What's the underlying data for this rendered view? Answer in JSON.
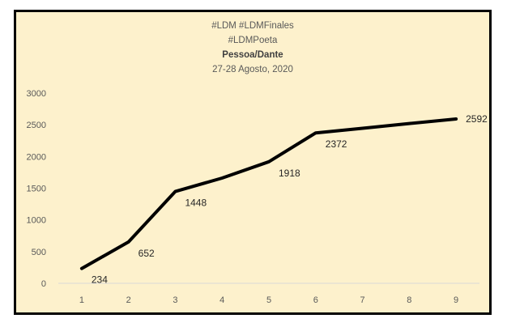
{
  "chart_data": {
    "type": "line",
    "title_lines": [
      "#LDM #LDMFinales",
      "#LDMPoeta"
    ],
    "title_bold": "Pessoa/Dante",
    "subtitle": "27-28 Agosto, 2020",
    "categories": [
      "1",
      "2",
      "3",
      "4",
      "5",
      "6",
      "7",
      "8",
      "9"
    ],
    "series": [
      {
        "values": [
          234,
          652,
          1448,
          1660,
          1918,
          2372,
          2445,
          2520,
          2592
        ],
        "labels": [
          "234",
          "652",
          "1448",
          "",
          "1918",
          "2372",
          "",
          "",
          "2592"
        ]
      }
    ],
    "ylim": [
      0,
      3000
    ],
    "yticks": [
      "0",
      "500",
      "1000",
      "1500",
      "2000",
      "2500",
      "3000"
    ],
    "grid": false,
    "legend": "none",
    "colors": {
      "background": "#fdf1cc",
      "line": "#000000",
      "border": "#000000"
    }
  }
}
